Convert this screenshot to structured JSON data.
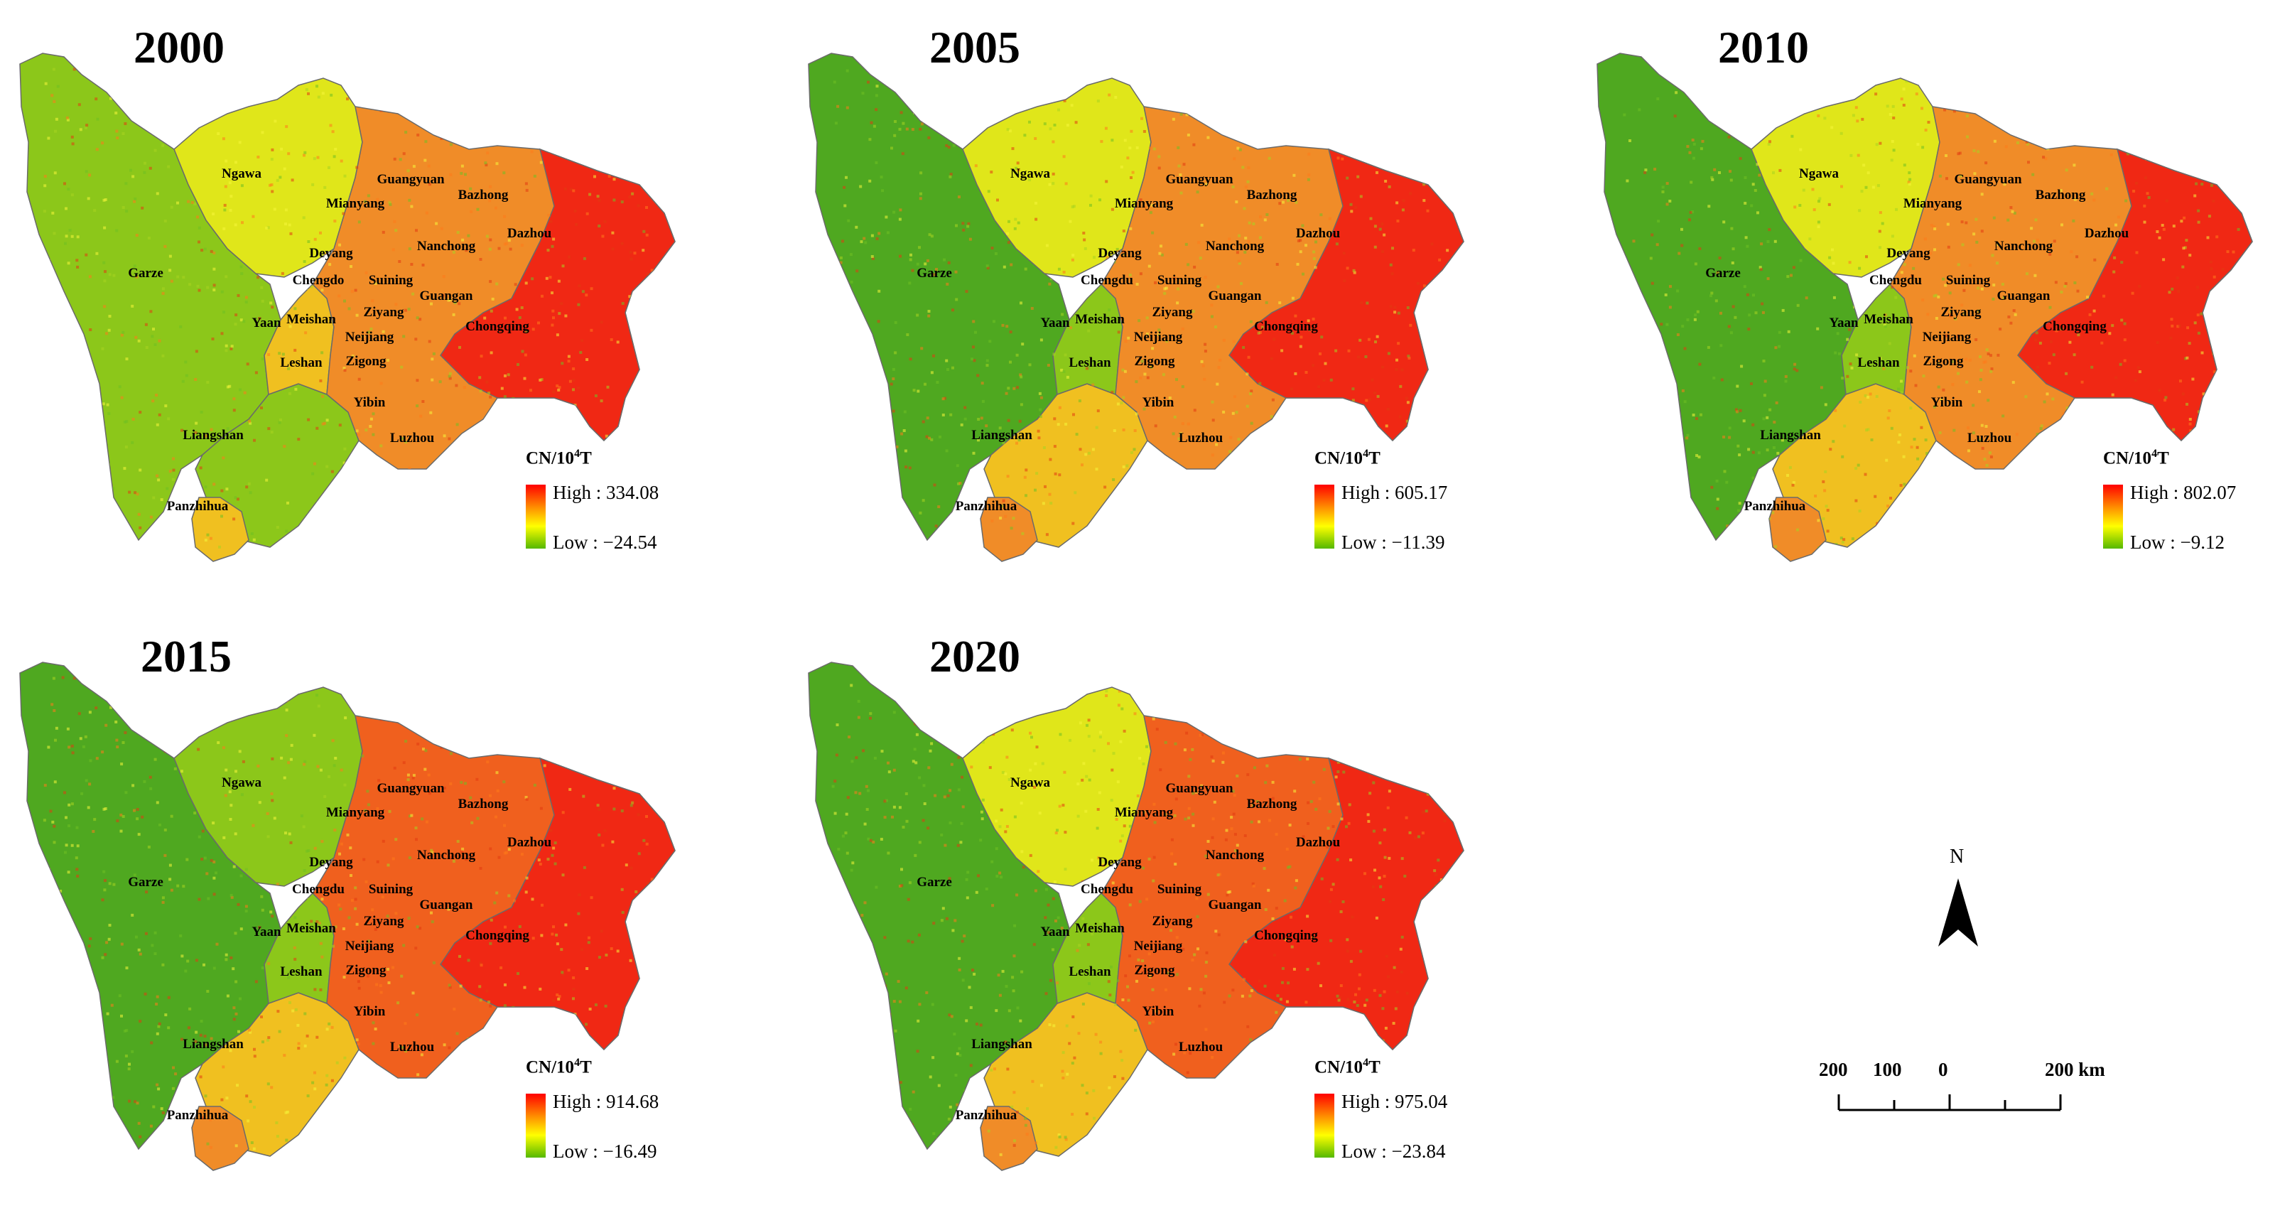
{
  "panels": [
    {
      "year": "2000",
      "legend": {
        "title": "CN/10",
        "title_sup": "4",
        "title_suffix": "T",
        "high": "High : 334.08",
        "low": "Low :  −24.54"
      }
    },
    {
      "year": "2005",
      "legend": {
        "title": "CN/10",
        "title_sup": "4",
        "title_suffix": "T",
        "high": "High : 605.17",
        "low": "Low :  −11.39"
      }
    },
    {
      "year": "2010",
      "legend": {
        "title": "CN/10",
        "title_sup": "4",
        "title_suffix": "T",
        "high": "High : 802.07",
        "low": "Low :  −9.12"
      }
    },
    {
      "year": "2015",
      "legend": {
        "title": "CN/10",
        "title_sup": "4",
        "title_suffix": "T",
        "high": "High : 914.68",
        "low": "Low :  −16.49"
      }
    },
    {
      "year": "2020",
      "legend": {
        "title": "CN/10",
        "title_sup": "4",
        "title_suffix": "T",
        "high": "High : 975.04",
        "low": "Low :  −23.84"
      }
    }
  ],
  "cities": {
    "ngawa": "Ngawa",
    "garze": "Garze",
    "guangyuan": "Guangyuan",
    "bazhong": "Bazhong",
    "mianyang": "Mianyang",
    "dazhou": "Dazhou",
    "deyang": "Deyang",
    "nanchong": "Nanchong",
    "chengdu": "Chengdu",
    "suining": "Suining",
    "guangan": "Guangan",
    "yaan": "Yaan",
    "meishan": "Meishan",
    "ziyang": "Ziyang",
    "neijiang": "Neijiang",
    "chongqing": "Chongqing",
    "leshan": "Leshan",
    "zigong": "Zigong",
    "yibin": "Yibin",
    "luzhou": "Luzhou",
    "liangshan": "Liangshan",
    "panzhihua": "Panzhihua"
  },
  "cities_2000": {
    "chengdo": "Chengdo"
  },
  "compass": {
    "label": "N",
    "icon": "north-arrow-icon"
  },
  "scale_bar": {
    "l200": "200",
    "l100": "100",
    "l0": "0",
    "r200": "200 km"
  },
  "colors": {
    "high": "#ff0000",
    "mid_high": "#ff8c00",
    "mid": "#ffff00",
    "low": "#55b800"
  }
}
